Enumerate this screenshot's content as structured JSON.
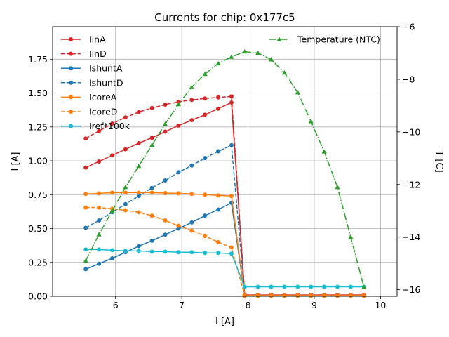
{
  "chart_data": {
    "type": "line",
    "title": "Currents for chip: 0x177c5",
    "xlabel": "I [A]",
    "ylabel": "I [A]",
    "y2label": "T [C]",
    "xlim": [
      5.05,
      10.25
    ],
    "ylim": [
      0,
      1.99
    ],
    "y2lim": [
      -16.25,
      -6
    ],
    "xticks": [
      6,
      7,
      8,
      9,
      10
    ],
    "xtick_labels": [
      "6",
      "7",
      "8",
      "9",
      "10"
    ],
    "yticks": [
      0,
      0.25,
      0.5,
      0.75,
      1.0,
      1.25,
      1.5,
      1.75
    ],
    "ytick_labels": [
      "0.00",
      "0.25",
      "0.50",
      "0.75",
      "1.00",
      "1.25",
      "1.50",
      "1.75"
    ],
    "y2ticks": [
      -16,
      -14,
      -12,
      -10,
      -8,
      -6
    ],
    "y2tick_labels": [
      "−16",
      "−14",
      "−12",
      "−10",
      "−8",
      "−6"
    ],
    "grid": true,
    "legend_left": "top-left",
    "legend_right": "top-right",
    "x": [
      5.55,
      5.75,
      5.95,
      6.15,
      6.35,
      6.55,
      6.75,
      6.95,
      7.15,
      7.35,
      7.55,
      7.75,
      7.95,
      8.15,
      8.35,
      8.55,
      8.75,
      8.95,
      9.15,
      9.35,
      9.55,
      9.75
    ],
    "series": [
      {
        "name": "IinA",
        "axis": "left",
        "color": "#d62728",
        "dash": "solid",
        "marker": "circle",
        "values": [
          0.95,
          0.995,
          1.04,
          1.085,
          1.13,
          1.17,
          1.215,
          1.26,
          1.3,
          1.34,
          1.385,
          1.43,
          0.01,
          0.01,
          0.01,
          0.01,
          0.01,
          0.01,
          0.01,
          0.01,
          0.01,
          0.01
        ]
      },
      {
        "name": "IinD",
        "axis": "left",
        "color": "#d62728",
        "dash": "dashed",
        "marker": "circle",
        "values": [
          1.165,
          1.22,
          1.275,
          1.32,
          1.36,
          1.39,
          1.415,
          1.435,
          1.45,
          1.46,
          1.468,
          1.475,
          0.01,
          0.01,
          0.01,
          0.01,
          0.01,
          0.01,
          0.01,
          0.01,
          0.01,
          0.01
        ]
      },
      {
        "name": "IshuntA",
        "axis": "left",
        "color": "#1f77b4",
        "dash": "solid",
        "marker": "circle",
        "values": [
          0.2,
          0.24,
          0.28,
          0.325,
          0.37,
          0.41,
          0.455,
          0.5,
          0.545,
          0.595,
          0.64,
          0.69,
          0.005,
          0.005,
          0.005,
          0.005,
          0.005,
          0.005,
          0.005,
          0.005,
          0.005,
          0.005
        ]
      },
      {
        "name": "IshuntD",
        "axis": "left",
        "color": "#1f77b4",
        "dash": "dashed",
        "marker": "circle",
        "values": [
          0.505,
          0.56,
          0.62,
          0.68,
          0.74,
          0.8,
          0.855,
          0.915,
          0.965,
          1.02,
          1.07,
          1.115,
          0.005,
          0.005,
          0.005,
          0.005,
          0.005,
          0.005,
          0.005,
          0.005,
          0.005,
          0.005
        ]
      },
      {
        "name": "IcoreA",
        "axis": "left",
        "color": "#ff7f0e",
        "dash": "solid",
        "marker": "circle",
        "values": [
          0.755,
          0.76,
          0.765,
          0.765,
          0.765,
          0.765,
          0.762,
          0.76,
          0.755,
          0.75,
          0.745,
          0.74,
          0.005,
          0.005,
          0.005,
          0.005,
          0.005,
          0.005,
          0.005,
          0.005,
          0.005,
          0.005
        ]
      },
      {
        "name": "IcoreD",
        "axis": "left",
        "color": "#ff7f0e",
        "dash": "dashed",
        "marker": "circle",
        "values": [
          0.655,
          0.655,
          0.645,
          0.635,
          0.62,
          0.595,
          0.56,
          0.52,
          0.485,
          0.445,
          0.4,
          0.36,
          0.005,
          0.005,
          0.005,
          0.005,
          0.005,
          0.005,
          0.005,
          0.005,
          0.005,
          0.005
        ]
      },
      {
        "name": "Iref*100k",
        "axis": "left",
        "color": "#17becf",
        "dash": "solid",
        "marker": "circle",
        "values": [
          0.345,
          0.345,
          0.34,
          0.335,
          0.335,
          0.33,
          0.33,
          0.325,
          0.325,
          0.32,
          0.32,
          0.315,
          0.07,
          0.07,
          0.07,
          0.07,
          0.07,
          0.07,
          0.07,
          0.07,
          0.07,
          0.07
        ]
      },
      {
        "name": "Temperature (NTC)",
        "axis": "right",
        "color": "#2ca02c",
        "dash": "dashdot",
        "marker": "triangle",
        "values": [
          -14.9,
          -13.9,
          -13.0,
          -12.1,
          -11.3,
          -10.5,
          -9.7,
          -8.95,
          -8.3,
          -7.8,
          -7.4,
          -7.15,
          -6.95,
          -7.0,
          -7.25,
          -7.75,
          -8.5,
          -9.6,
          -10.75,
          -12.1,
          -14.0,
          -15.9
        ]
      }
    ]
  }
}
